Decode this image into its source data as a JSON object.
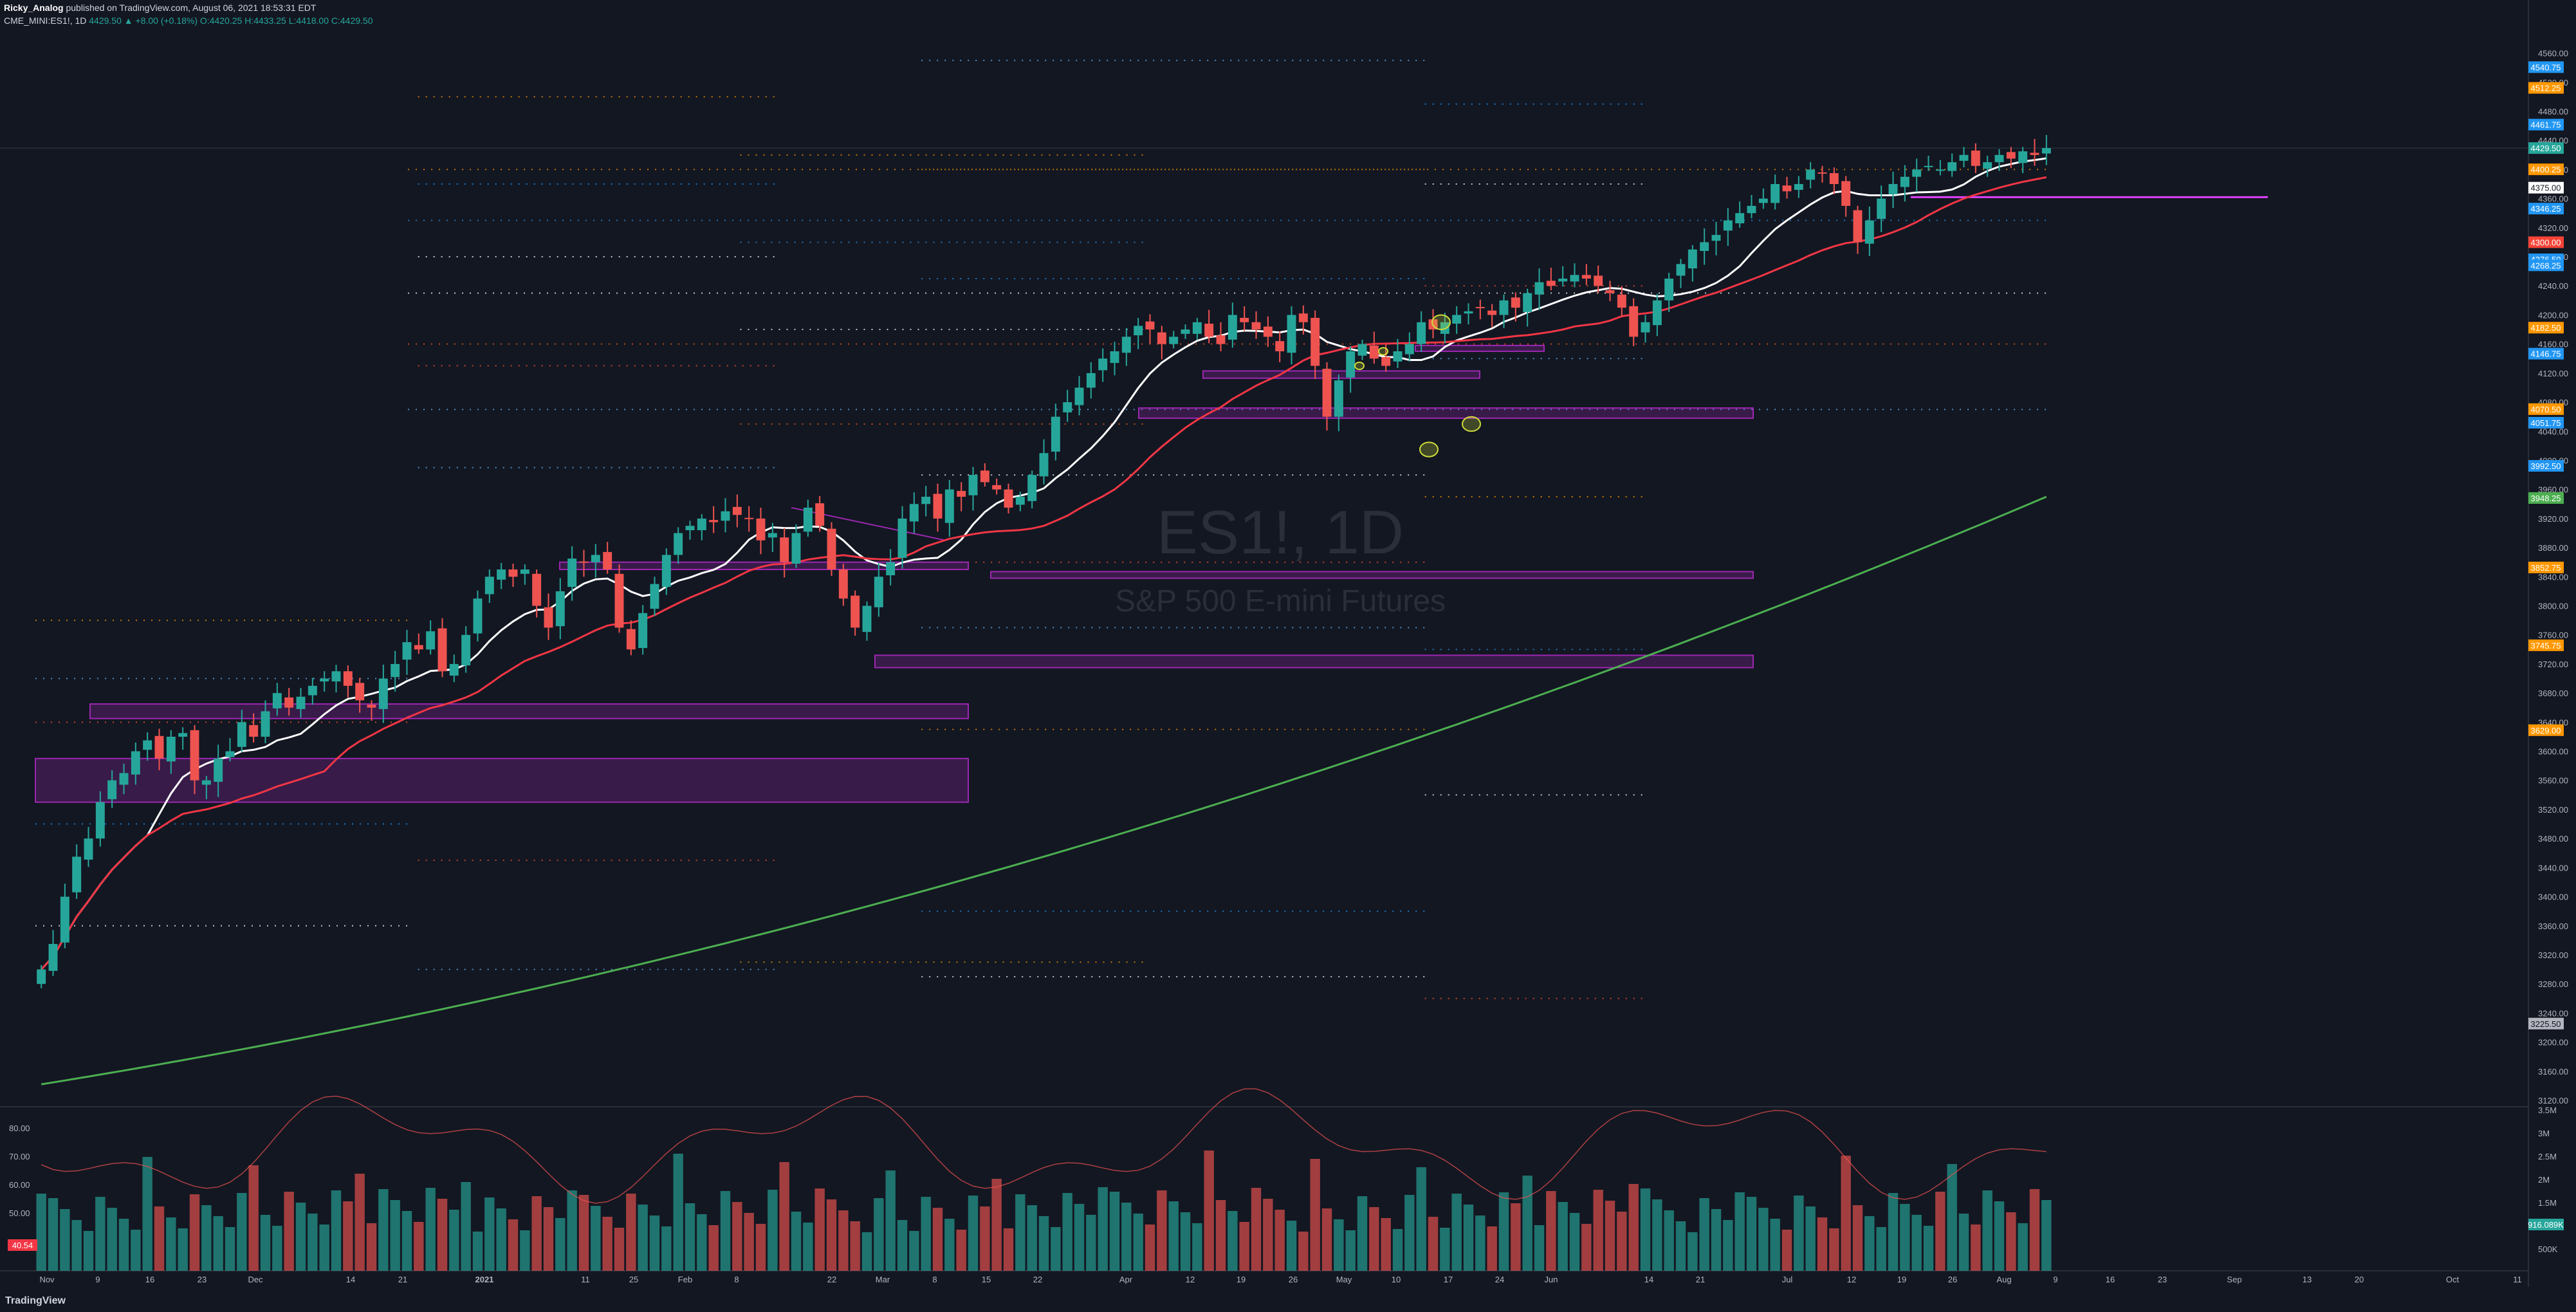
{
  "header": {
    "author": "Ricky_Analog",
    "published": "published on TradingView.com, August 06, 2021 18:53:31 EDT",
    "symbol": "CME_MINI:ES1!, 1D",
    "last": "4429.50",
    "change": "▲ +8.00 (+0.18%)",
    "o": "O:4420.25",
    "h": "H:4433.25",
    "l": "L:4418.00",
    "c": "C:4429.50"
  },
  "watermark": {
    "ticker": "ES1!, 1D",
    "name": "S&P 500 E-mini Futures"
  },
  "footer": {
    "logo": "TradingView"
  },
  "price_axis": {
    "ticks": [
      "4560.00",
      "4520.00",
      "4480.00",
      "4440.00",
      "4400.00",
      "4360.00",
      "4320.00",
      "4280.00",
      "4240.00",
      "4200.00",
      "4160.00",
      "4120.00",
      "4080.00",
      "4040.00",
      "4000.00",
      "3960.00",
      "3920.00",
      "3880.00",
      "3840.00",
      "3800.00",
      "3760.00",
      "3720.00",
      "3680.00",
      "3640.00",
      "3600.00",
      "3560.00",
      "3520.00",
      "3480.00",
      "3440.00",
      "3400.00",
      "3360.00",
      "3320.00",
      "3280.00",
      "3240.00",
      "3200.00",
      "3160.00",
      "3120.00"
    ],
    "badges": [
      {
        "text": "4540.75",
        "color": "#2196f3"
      },
      {
        "text": "4512.25",
        "color": "#ff9800"
      },
      {
        "text": "4461.75",
        "color": "#2196f3"
      },
      {
        "text": "4429.50",
        "color": "#26a69a"
      },
      {
        "text": "4400.25",
        "color": "#ff9800"
      },
      {
        "text": "4375.00",
        "color": "#ffffff"
      },
      {
        "text": "4346.25",
        "color": "#2196f3"
      },
      {
        "text": "4300.00",
        "color": "#f44336"
      },
      {
        "text": "4276.50",
        "color": "#2196f3"
      },
      {
        "text": "4268.25",
        "color": "#2196f3"
      },
      {
        "text": "4182.50",
        "color": "#ff9800"
      },
      {
        "text": "4146.75",
        "color": "#2196f3"
      },
      {
        "text": "4070.50",
        "color": "#ff9800"
      },
      {
        "text": "4051.75",
        "color": "#2196f3"
      },
      {
        "text": "3992.50",
        "color": "#2196f3"
      },
      {
        "text": "3948.25",
        "color": "#4caf50"
      },
      {
        "text": "3852.75",
        "color": "#ff9800"
      },
      {
        "text": "3745.75",
        "color": "#ff9800"
      },
      {
        "text": "3629.00",
        "color": "#ff9800"
      },
      {
        "text": "3225.50",
        "color": "#b2b5be"
      }
    ]
  },
  "volume_axis": {
    "ticks": [
      "3.5M",
      "3M",
      "2.5M",
      "2M",
      "1.5M",
      "1M",
      "500K"
    ],
    "badge": "916.089K"
  },
  "rsi_axis": {
    "ticks": [
      "80.00",
      "70.00",
      "60.00",
      "50.00"
    ],
    "badge": "40.54"
  },
  "time_axis": [
    "Nov",
    "9",
    "16",
    "23",
    "Dec",
    "14",
    "21",
    "2021",
    "11",
    "25",
    "Feb",
    "8",
    "22",
    "Mar",
    "8",
    "15",
    "22",
    "Apr",
    "12",
    "19",
    "26",
    "May",
    "10",
    "17",
    "24",
    "Jun",
    "14",
    "21",
    "Jul",
    "12",
    "19",
    "26",
    "Aug",
    "9",
    "16",
    "23",
    "Sep",
    "13",
    "20",
    "Oct",
    "11"
  ],
  "colors": {
    "up": "#26a69a",
    "down": "#ef5350",
    "ma_fast": "#ffffff",
    "ma_mid": "#f23645",
    "ma_slow": "#4caf50",
    "zone": "#9c27b0",
    "level_magenta": "#e040fb",
    "bg": "#131722"
  },
  "chart_data": {
    "type": "candlestick",
    "symbol": "CME_MINI:ES1!",
    "interval": "1D",
    "ylim": [
      3120,
      4580
    ],
    "series": [
      {
        "name": "close",
        "values": [
          3300,
          3335,
          3400,
          3455,
          3480,
          3530,
          3560,
          3570,
          3600,
          3615,
          3590,
          3620,
          3625,
          3560,
          3560,
          3590,
          3600,
          3640,
          3620,
          3655,
          3680,
          3660,
          3675,
          3690,
          3700,
          3710,
          3690,
          3670,
          3660,
          3700,
          3720,
          3750,
          3740,
          3765,
          3710,
          3720,
          3760,
          3810,
          3840,
          3850,
          3840,
          3850,
          3800,
          3770,
          3820,
          3865,
          3860,
          3870,
          3850,
          3770,
          3740,
          3790,
          3830,
          3870,
          3900,
          3910,
          3920,
          3915,
          3930,
          3925,
          3920,
          3890,
          3900,
          3860,
          3900,
          3935,
          3910,
          3850,
          3810,
          3770,
          3800,
          3840,
          3860,
          3920,
          3940,
          3950,
          3920,
          3960,
          3950,
          3980,
          3970,
          3960,
          3935,
          3950,
          3980,
          4010,
          4060,
          4080,
          4100,
          4120,
          4140,
          4150,
          4170,
          4185,
          4180,
          4160,
          4170,
          4180,
          4190,
          4170,
          4160,
          4200,
          4190,
          4180,
          4170,
          4150,
          4200,
          4190,
          4130,
          4060,
          4110,
          4150,
          4160,
          4140,
          4130,
          4150,
          4160,
          4190,
          4180,
          4190,
          4200,
          4205,
          4210,
          4200,
          4220,
          4210,
          4230,
          4245,
          4240,
          4250,
          4255,
          4250,
          4240,
          4230,
          4210,
          4170,
          4190,
          4220,
          4250,
          4270,
          4290,
          4300,
          4310,
          4330,
          4340,
          4350,
          4360,
          4380,
          4370,
          4380,
          4400,
          4395,
          4380,
          4350,
          4300,
          4330,
          4360,
          4380,
          4390,
          4400,
          4405,
          4400,
          4410,
          4420,
          4405,
          4410,
          4420,
          4415,
          4425,
          4420,
          4429.5
        ]
      }
    ]
  }
}
